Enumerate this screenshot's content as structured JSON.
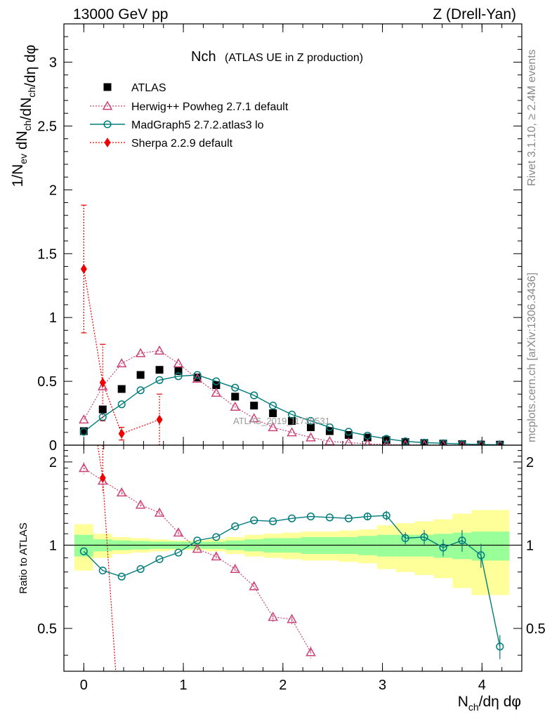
{
  "header": {
    "left": "13000 GeV pp",
    "right": "Z (Drell-Yan)"
  },
  "side_labels": {
    "rivet": "Rivet 3.1.10, ≥ 2.4M events",
    "mcplots": "mcplots.cern.ch [arXiv:1306.3436]"
  },
  "watermark": "ATLAS_2019_I1736531",
  "colors": {
    "atlas": "#000000",
    "herwig": "#cc4477",
    "madgraph": "#007b7b",
    "sherpa": "#ee0000",
    "band_inner": "#99ff99",
    "band_outer": "#ffff99"
  },
  "chart_data": [
    {
      "type": "scatter",
      "panel": "main",
      "title_main": "Nch",
      "title_sub": "(ATLAS UE in Z production)",
      "ylabel": "1/N_ev dN_ch/dη dφ",
      "xlim": [
        -0.2,
        4.4
      ],
      "ylim": [
        0,
        3.3
      ],
      "yticks": [
        0,
        0.5,
        1,
        1.5,
        2,
        2.5,
        3
      ],
      "ytick_labels": [
        "0",
        "0.5",
        "1",
        "1.5",
        "2",
        "2.5",
        "3"
      ],
      "legend": [
        "ATLAS",
        "Herwig++ Powheg 2.7.1 default",
        "MadGraph5 2.7.2.atlas3 lo",
        "Sherpa 2.2.9 default"
      ],
      "series": [
        {
          "name": "ATLAS",
          "x": [
            0.0,
            0.19,
            0.38,
            0.57,
            0.76,
            0.95,
            1.14,
            1.33,
            1.52,
            1.71,
            1.9,
            2.09,
            2.28,
            2.47,
            2.66,
            2.85,
            3.04,
            3.23,
            3.42,
            3.61,
            3.8,
            3.99,
            4.18
          ],
          "values": [
            0.11,
            0.28,
            0.44,
            0.55,
            0.59,
            0.58,
            0.53,
            0.47,
            0.38,
            0.31,
            0.25,
            0.19,
            0.14,
            0.11,
            0.08,
            0.06,
            0.04,
            0.025,
            0.017,
            0.012,
            0.008,
            0.005,
            0.004
          ]
        },
        {
          "name": "Herwig++ Powheg 2.7.1 default",
          "x": [
            0.0,
            0.19,
            0.38,
            0.57,
            0.76,
            0.95,
            1.14,
            1.33,
            1.52,
            1.71,
            1.9,
            2.09,
            2.28,
            2.47,
            2.66,
            2.85,
            3.04,
            3.23,
            3.42,
            3.61,
            3.8,
            3.99,
            4.18
          ],
          "values": [
            0.2,
            0.46,
            0.64,
            0.72,
            0.74,
            0.64,
            0.52,
            0.41,
            0.3,
            0.21,
            0.14,
            0.1,
            0.06,
            0.03,
            0.02,
            0.01,
            0.005,
            0.003,
            0.002,
            0.001,
            0.001,
            0.001,
            0.001
          ]
        },
        {
          "name": "MadGraph5 2.7.2.atlas3 lo",
          "x": [
            0.0,
            0.19,
            0.38,
            0.57,
            0.76,
            0.95,
            1.14,
            1.33,
            1.52,
            1.71,
            1.9,
            2.09,
            2.28,
            2.47,
            2.66,
            2.85,
            3.04,
            3.23,
            3.42,
            3.61,
            3.8,
            3.99,
            4.18
          ],
          "values": [
            0.105,
            0.22,
            0.32,
            0.43,
            0.51,
            0.54,
            0.55,
            0.5,
            0.45,
            0.39,
            0.31,
            0.24,
            0.19,
            0.14,
            0.105,
            0.075,
            0.05,
            0.03,
            0.02,
            0.015,
            0.01,
            0.005,
            0.003
          ]
        },
        {
          "name": "Sherpa 2.2.9 default",
          "x": [
            0.0,
            0.19,
            0.38,
            0.76
          ],
          "values": [
            1.38,
            0.49,
            0.09,
            0.2
          ],
          "errors": [
            0.5,
            0.3,
            0.05,
            0.2
          ]
        }
      ]
    },
    {
      "type": "line",
      "panel": "ratio",
      "ylabel": "Ratio to ATLAS",
      "xlabel": "N_ch/dη dφ",
      "xlim": [
        -0.2,
        4.4
      ],
      "ylim": [
        0.35,
        2.3
      ],
      "yticks": [
        0.5,
        1,
        2
      ],
      "ytick_labels": [
        "0.5",
        "1",
        "2"
      ],
      "xticks": [
        0,
        1,
        2,
        3,
        4
      ],
      "xtick_labels": [
        "0",
        "1",
        "2",
        "3",
        "4"
      ],
      "bins": [
        -0.095,
        0.095,
        0.285,
        0.475,
        0.665,
        0.855,
        1.045,
        1.235,
        1.425,
        1.615,
        1.805,
        1.995,
        2.185,
        2.375,
        2.565,
        2.755,
        2.945,
        3.135,
        3.325,
        3.515,
        3.705,
        3.895,
        4.085,
        4.275
      ],
      "band_inner": [
        0.09,
        0.05,
        0.04,
        0.035,
        0.03,
        0.03,
        0.03,
        0.03,
        0.04,
        0.05,
        0.06,
        0.06,
        0.07,
        0.07,
        0.07,
        0.08,
        0.09,
        0.09,
        0.09,
        0.1,
        0.11,
        0.12,
        0.12
      ],
      "band_outer": [
        0.19,
        0.1,
        0.07,
        0.06,
        0.05,
        0.04,
        0.04,
        0.05,
        0.07,
        0.09,
        0.1,
        0.11,
        0.12,
        0.12,
        0.13,
        0.14,
        0.18,
        0.2,
        0.22,
        0.24,
        0.3,
        0.34,
        0.34
      ],
      "series": [
        {
          "name": "Herwig++ Powheg 2.7.1 default",
          "x": [
            0.0,
            0.19,
            0.38,
            0.57,
            0.76,
            0.95,
            1.14,
            1.33,
            1.52,
            1.71,
            1.9,
            2.09,
            2.28
          ],
          "values": [
            1.9,
            1.71,
            1.55,
            1.4,
            1.31,
            1.11,
            0.97,
            0.91,
            0.82,
            0.71,
            0.55,
            0.54,
            0.41
          ]
        },
        {
          "name": "MadGraph5 2.7.2.atlas3 lo",
          "x": [
            0.0,
            0.19,
            0.38,
            0.57,
            0.76,
            0.95,
            1.14,
            1.33,
            1.52,
            1.71,
            1.9,
            2.09,
            2.28,
            2.47,
            2.66,
            2.85,
            3.04,
            3.23,
            3.42,
            3.61,
            3.8,
            3.99,
            4.18
          ],
          "values": [
            0.95,
            0.81,
            0.77,
            0.82,
            0.89,
            0.94,
            1.04,
            1.07,
            1.17,
            1.23,
            1.22,
            1.25,
            1.27,
            1.26,
            1.25,
            1.27,
            1.28,
            1.06,
            1.07,
            0.98,
            1.04,
            0.92,
            0.43
          ]
        },
        {
          "name": "Sherpa 2.2.9 default",
          "x": [
            0.19
          ],
          "values": [
            1.75
          ]
        }
      ]
    }
  ]
}
